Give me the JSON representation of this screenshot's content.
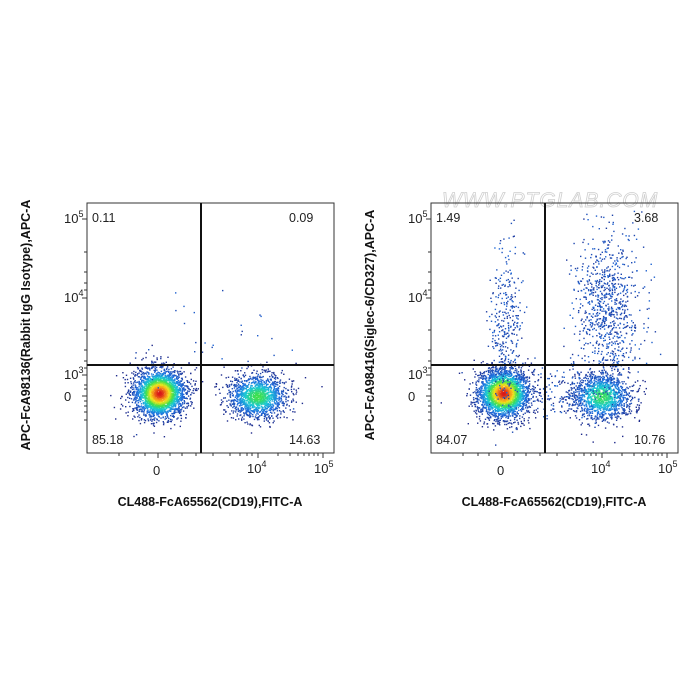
{
  "watermark": "WWW.PTGLAB.COM",
  "chart_data": [
    {
      "type": "scatter",
      "subtype": "flow-cytometry-density-dot-plot",
      "xlabel": "CL488-FcA65562(CD19),FITC-A",
      "ylabel": "APC-FcA98136(Rabbit IgG Isotype),APC-A",
      "x_scale": "biexponential",
      "y_scale": "biexponential",
      "x_ticks": [
        {
          "value": "0",
          "base": "0",
          "exp": ""
        },
        {
          "value": "10^4",
          "base": "10",
          "exp": "4"
        },
        {
          "value": "10^5",
          "base": "10",
          "exp": "5"
        }
      ],
      "y_ticks": [
        {
          "value": "0",
          "base": "0",
          "exp": ""
        },
        {
          "value": "10^3",
          "base": "10",
          "exp": "3"
        },
        {
          "value": "10^4",
          "base": "10",
          "exp": "4"
        },
        {
          "value": "10^5",
          "base": "10",
          "exp": "5"
        }
      ],
      "quadrants": {
        "top_left": "0.11",
        "top_right": "0.09",
        "bottom_left": "85.18",
        "bottom_right": "14.63"
      },
      "populations": [
        {
          "x": 0,
          "y": 0,
          "density": "high"
        },
        {
          "x": 12000,
          "y": 0,
          "density": "medium"
        }
      ]
    },
    {
      "type": "scatter",
      "subtype": "flow-cytometry-density-dot-plot",
      "xlabel": "CL488-FcA65562(CD19),FITC-A",
      "ylabel": "APC-FcA98416(Siglec-6/CD327),APC-A",
      "x_scale": "biexponential",
      "y_scale": "biexponential",
      "x_ticks": [
        {
          "value": "0",
          "base": "0",
          "exp": ""
        },
        {
          "value": "10^4",
          "base": "10",
          "exp": "4"
        },
        {
          "value": "10^5",
          "base": "10",
          "exp": "5"
        }
      ],
      "y_ticks": [
        {
          "value": "0",
          "base": "0",
          "exp": ""
        },
        {
          "value": "10^3",
          "base": "10",
          "exp": "3"
        },
        {
          "value": "10^4",
          "base": "10",
          "exp": "4"
        },
        {
          "value": "10^5",
          "base": "10",
          "exp": "5"
        }
      ],
      "quadrants": {
        "top_left": "1.49",
        "top_right": "3.68",
        "bottom_left": "84.07",
        "bottom_right": "10.76"
      },
      "populations": [
        {
          "x": 0,
          "y": 0,
          "density": "high"
        },
        {
          "x": 12000,
          "y": 0,
          "density": "medium"
        },
        {
          "x": 12000,
          "y": 10000,
          "density": "low"
        },
        {
          "x": 0,
          "y": 5000,
          "density": "low"
        }
      ]
    }
  ]
}
